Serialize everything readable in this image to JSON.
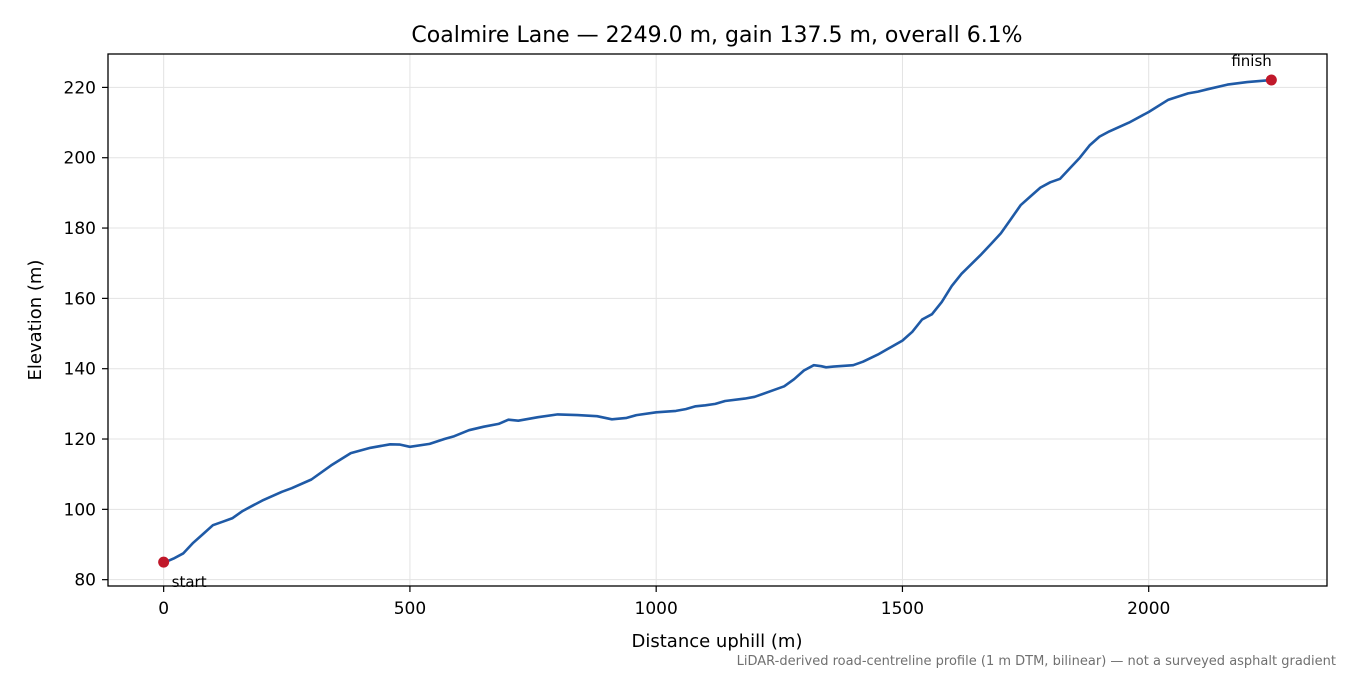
{
  "chart_data": {
    "type": "line",
    "title": "Coalmire Lane — 2249.0 m, gain 137.5 m, overall 6.1%",
    "xlabel": "Distance uphill (m)",
    "ylabel": "Elevation (m)",
    "xlim": [
      -113,
      2362
    ],
    "ylim": [
      78.2,
      229.5
    ],
    "xticks": [
      0,
      500,
      1000,
      1500,
      2000
    ],
    "yticks": [
      80,
      100,
      120,
      140,
      160,
      180,
      200,
      220
    ],
    "xtick_labels": [
      "0",
      "500",
      "1000",
      "1500",
      "2000"
    ],
    "ytick_labels": [
      "80",
      "100",
      "120",
      "140",
      "160",
      "180",
      "200",
      "220"
    ],
    "grid": true,
    "line_color": "#1f5aa6",
    "marker_color": "#c0182a",
    "series": [
      {
        "x": [
          0,
          10,
          20,
          40,
          60,
          80,
          100,
          120,
          140,
          160,
          180,
          200,
          240,
          260,
          300,
          340,
          380,
          420,
          460,
          480,
          500,
          540,
          570,
          590,
          620,
          650,
          680,
          700,
          720,
          760,
          800,
          840,
          880,
          910,
          940,
          960,
          1000,
          1040,
          1060,
          1080,
          1100,
          1120,
          1140,
          1180,
          1200,
          1240,
          1260,
          1280,
          1300,
          1320,
          1335,
          1345,
          1360,
          1400,
          1420,
          1450,
          1500,
          1520,
          1540,
          1560,
          1580,
          1600,
          1620,
          1660,
          1680,
          1700,
          1720,
          1740,
          1760,
          1780,
          1800,
          1820,
          1840,
          1860,
          1880,
          1900,
          1920,
          1960,
          2000,
          2040,
          2080,
          2100,
          2120,
          2160,
          2200,
          2249
        ],
        "y": [
          85.0,
          85.4,
          86.0,
          87.5,
          90.5,
          93.0,
          95.5,
          96.5,
          97.5,
          99.5,
          101.0,
          102.5,
          105.0,
          106.0,
          108.5,
          112.5,
          116.0,
          117.5,
          118.5,
          118.4,
          117.8,
          118.6,
          120.0,
          120.8,
          122.5,
          123.5,
          124.3,
          125.5,
          125.2,
          126.2,
          127.0,
          126.8,
          126.5,
          125.6,
          126.0,
          126.8,
          127.6,
          128.0,
          128.5,
          129.3,
          129.6,
          130.0,
          130.8,
          131.5,
          132.0,
          134.0,
          135.0,
          137.0,
          139.5,
          141.0,
          140.7,
          140.4,
          140.6,
          141.0,
          142.0,
          144.0,
          148.0,
          150.5,
          154.0,
          155.5,
          159.0,
          163.5,
          167.0,
          172.5,
          175.5,
          178.5,
          182.5,
          186.5,
          189.0,
          191.5,
          193.0,
          194.0,
          197.0,
          200.0,
          203.5,
          206.0,
          207.5,
          210.0,
          213.0,
          216.5,
          218.3,
          218.8,
          219.5,
          220.8,
          221.5,
          222.1
        ]
      }
    ],
    "markers": [
      {
        "x": 0,
        "y": 85.0,
        "label": "start"
      },
      {
        "x": 2249,
        "y": 222.1,
        "label": "finish"
      }
    ],
    "footnote": "LiDAR-derived road-centreline profile (1 m DTM, bilinear) — not a surveyed asphalt gradient"
  }
}
